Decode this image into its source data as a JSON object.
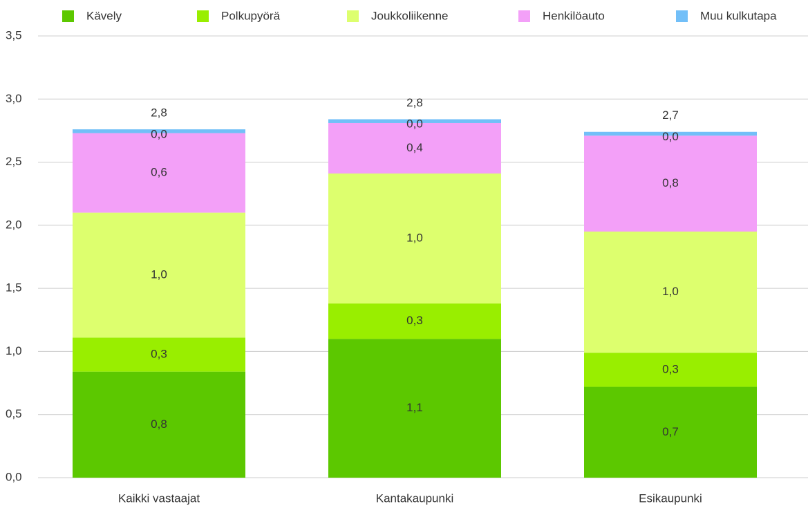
{
  "chart_data": {
    "type": "stacked_bar",
    "categories": [
      "Kaikki vastaajat",
      "Kantakaupunki",
      "Esikaupunki"
    ],
    "series": [
      {
        "name": "Kävely",
        "color": "#5cc800",
        "values": [
          0.84,
          1.1,
          0.72
        ],
        "value_labels": [
          "0,8",
          "1,1",
          "0,7"
        ]
      },
      {
        "name": "Polkupyörä",
        "color": "#99ee00",
        "values": [
          0.27,
          0.28,
          0.27
        ],
        "value_labels": [
          "0,3",
          "0,3",
          "0,3"
        ]
      },
      {
        "name": "Joukkoliikenne",
        "color": "#ddff6e",
        "values": [
          0.99,
          1.03,
          0.96
        ],
        "value_labels": [
          "1,0",
          "1,0",
          "1,0"
        ]
      },
      {
        "name": "Henkilöauto",
        "color": "#f3a0f8",
        "values": [
          0.63,
          0.4,
          0.76
        ],
        "value_labels": [
          "0,6",
          "0,4",
          "0,8"
        ]
      },
      {
        "name": "Muu kulkutapa",
        "color": "#72bff8",
        "values": [
          0.03,
          0.03,
          0.03
        ],
        "value_labels": [
          "0,0",
          "0,0",
          "0,0"
        ]
      }
    ],
    "totals": [
      2.76,
      2.84,
      2.74
    ],
    "total_labels": [
      "2,8",
      "2,8",
      "2,7"
    ],
    "ylim": [
      0,
      3.5
    ],
    "yticks": [
      {
        "value": 0,
        "label": "0,0"
      },
      {
        "value": 0.5,
        "label": "0,5"
      },
      {
        "value": 1,
        "label": "1,0"
      },
      {
        "value": 1.5,
        "label": "1,5"
      },
      {
        "value": 2,
        "label": "2,0"
      },
      {
        "value": 2.5,
        "label": "2,5"
      },
      {
        "value": 3,
        "label": "3,0"
      },
      {
        "value": 3.5,
        "label": "3,5"
      }
    ],
    "grid": true,
    "legend": "top"
  }
}
